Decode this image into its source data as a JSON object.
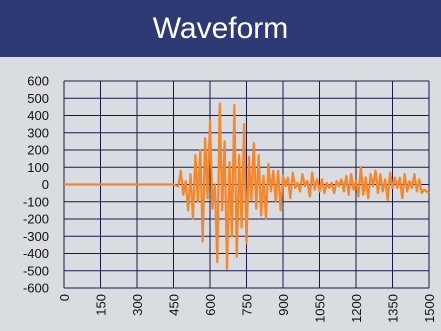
{
  "header": {
    "title": "Waveform"
  },
  "colors": {
    "header_bg": "#2d3a73",
    "panel_bg": "#d9dce0",
    "grid": "#1a1a4a",
    "series": "#f5862a"
  },
  "chart_data": {
    "type": "line",
    "title": "Waveform",
    "xlabel": "",
    "ylabel": "",
    "xlim": [
      0,
      1500
    ],
    "ylim": [
      -600,
      600
    ],
    "grid": true,
    "x_ticks": [
      0,
      150,
      300,
      450,
      600,
      750,
      900,
      1050,
      1200,
      1350,
      1500
    ],
    "x_tick_labels": [
      "0",
      "150",
      "300",
      "450",
      "600",
      "750",
      "900",
      "1050",
      "1200",
      "1350",
      "1500"
    ],
    "y_ticks": [
      600,
      500,
      400,
      300,
      200,
      100,
      0,
      -100,
      -200,
      -300,
      -400,
      -500,
      -600
    ],
    "y_tick_labels": [
      "600",
      "500",
      "400",
      "300",
      "200",
      "100",
      "0",
      "-100",
      "-200",
      "-300",
      "-400",
      "-500",
      "-600"
    ],
    "series": [
      {
        "x": [
          0,
          100,
          200,
          300,
          400,
          450,
          470,
          480,
          490,
          500,
          510,
          520,
          530,
          540,
          550,
          560,
          570,
          580,
          590,
          600,
          610,
          620,
          630,
          640,
          650,
          660,
          670,
          680,
          690,
          700,
          710,
          720,
          730,
          740,
          750,
          760,
          770,
          780,
          790,
          800,
          810,
          820,
          830,
          840,
          850,
          860,
          870,
          880,
          890,
          900,
          910,
          920,
          930,
          940,
          950,
          960,
          970,
          980,
          990,
          1000,
          1010,
          1020,
          1030,
          1040,
          1050,
          1060,
          1070,
          1080,
          1090,
          1100,
          1110,
          1120,
          1130,
          1140,
          1150,
          1160,
          1170,
          1180,
          1190,
          1200,
          1210,
          1220,
          1230,
          1240,
          1250,
          1260,
          1270,
          1280,
          1290,
          1300,
          1310,
          1320,
          1330,
          1340,
          1350,
          1360,
          1370,
          1380,
          1390,
          1400,
          1410,
          1420,
          1430,
          1440,
          1450,
          1460,
          1470,
          1480,
          1490,
          1500
        ],
        "values": [
          0,
          0,
          0,
          0,
          0,
          0,
          -10,
          80,
          -60,
          20,
          -150,
          60,
          -200,
          170,
          -100,
          200,
          -330,
          270,
          -80,
          370,
          -140,
          0,
          -450,
          470,
          -150,
          250,
          -490,
          130,
          -300,
          460,
          -420,
          170,
          -250,
          350,
          -340,
          160,
          -90,
          240,
          -140,
          170,
          -180,
          50,
          -200,
          120,
          -40,
          80,
          -100,
          80,
          -150,
          50,
          -10,
          40,
          -80,
          70,
          -20,
          10,
          -40,
          60,
          -10,
          20,
          -70,
          70,
          -30,
          30,
          -40,
          30,
          -50,
          10,
          -20,
          10,
          -50,
          20,
          -10,
          30,
          -40,
          50,
          -60,
          60,
          -30,
          20,
          -70,
          100,
          -60,
          40,
          -80,
          60,
          -10,
          80,
          -50,
          60,
          -40,
          30,
          -90,
          70,
          -20,
          40,
          -20,
          40,
          -80,
          60,
          -40,
          20,
          -20,
          60,
          -40,
          30,
          -50,
          -30,
          -40,
          -50
        ]
      }
    ]
  }
}
